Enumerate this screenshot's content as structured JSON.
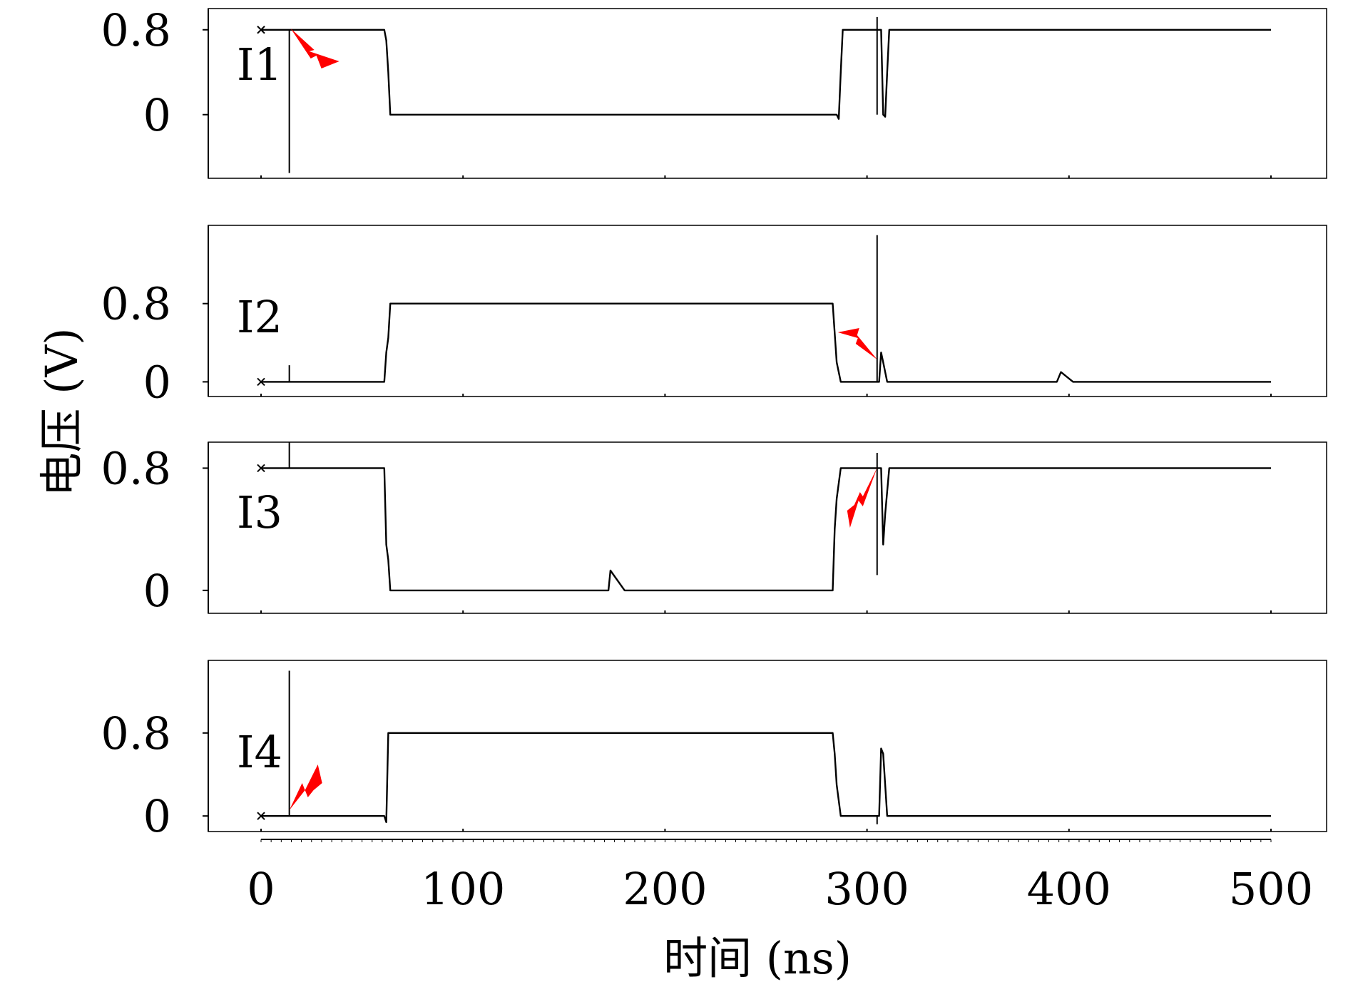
{
  "chart_data": {
    "type": "line",
    "ylabel": "电压 (V)",
    "xlabel": "时间 (ns)",
    "xlim": [
      0,
      500
    ],
    "x_ticks": [
      "0",
      "100",
      "200",
      "300",
      "400",
      "500"
    ],
    "x_tick_values": [
      0,
      100,
      200,
      300,
      400,
      500
    ],
    "y_tick_labels": [
      "0",
      "0.8"
    ],
    "y_tick_values": [
      0,
      0.8
    ],
    "grid": false,
    "legend": "none",
    "panels": [
      {
        "name": "I1",
        "ylim": [
          -0.6,
          1.0
        ],
        "points": [
          [
            0,
            0.8
          ],
          [
            61,
            0.8
          ],
          [
            62,
            0.7
          ],
          [
            63,
            0.4
          ],
          [
            64,
            0.0
          ],
          [
            285,
            0.0
          ],
          [
            286,
            -0.04
          ],
          [
            287,
            0.4
          ],
          [
            288,
            0.8
          ],
          [
            307,
            0.8
          ],
          [
            308,
            0.0
          ],
          [
            309,
            -0.02
          ],
          [
            310,
            0.4
          ],
          [
            311,
            0.8
          ],
          [
            500,
            0.8
          ]
        ],
        "spikes": [
          [
            14,
            -0.55,
            0.8
          ],
          [
            305,
            0.0,
            0.92
          ]
        ],
        "strike": {
          "time": 14,
          "direction": "down"
        }
      },
      {
        "name": "I2",
        "ylim": [
          -0.15,
          1.6
        ],
        "points": [
          [
            0,
            0.0
          ],
          [
            61,
            0.0
          ],
          [
            62,
            0.3
          ],
          [
            63,
            0.45
          ],
          [
            64,
            0.8
          ],
          [
            283,
            0.8
          ],
          [
            284,
            0.5
          ],
          [
            285,
            0.2
          ],
          [
            287,
            0.0
          ],
          [
            306,
            0.0
          ],
          [
            307,
            0.3
          ],
          [
            308,
            0.2
          ],
          [
            310,
            0.0
          ],
          [
            394,
            0.0
          ],
          [
            396,
            0.1
          ],
          [
            402,
            0.0
          ],
          [
            500,
            0.0
          ]
        ],
        "spikes": [
          [
            14,
            0.0,
            0.17
          ],
          [
            305,
            0.0,
            1.5
          ]
        ],
        "strike": {
          "time": 305,
          "direction": "down"
        }
      },
      {
        "name": "I3",
        "ylim": [
          -0.15,
          0.97
        ],
        "points": [
          [
            0,
            0.8
          ],
          [
            61,
            0.8
          ],
          [
            62,
            0.3
          ],
          [
            63,
            0.2
          ],
          [
            64,
            0.0
          ],
          [
            172,
            0.0
          ],
          [
            173,
            0.13
          ],
          [
            180,
            0.0
          ],
          [
            283,
            0.0
          ],
          [
            284,
            0.4
          ],
          [
            285,
            0.6
          ],
          [
            287,
            0.8
          ],
          [
            307,
            0.8
          ],
          [
            308,
            0.3
          ],
          [
            309,
            0.5
          ],
          [
            311,
            0.8
          ],
          [
            500,
            0.8
          ]
        ],
        "spikes": [
          [
            14,
            0.8,
            0.97
          ],
          [
            305,
            0.1,
            0.9
          ]
        ],
        "strike": {
          "time": 305,
          "direction": "up"
        }
      },
      {
        "name": "I4",
        "ylim": [
          -0.15,
          1.5
        ],
        "points": [
          [
            0,
            0.0
          ],
          [
            61,
            0.0
          ],
          [
            62,
            -0.06
          ],
          [
            63,
            0.8
          ],
          [
            283,
            0.8
          ],
          [
            284,
            0.6
          ],
          [
            285,
            0.3
          ],
          [
            287,
            0.0
          ],
          [
            306,
            0.0
          ],
          [
            307,
            0.65
          ],
          [
            308,
            0.6
          ],
          [
            309,
            0.3
          ],
          [
            310,
            0.0
          ],
          [
            500,
            0.0
          ]
        ],
        "spikes": [
          [
            14,
            0.0,
            1.4
          ],
          [
            305,
            -0.08,
            0.0
          ]
        ],
        "strike": {
          "time": 14,
          "direction": "up"
        }
      }
    ]
  }
}
